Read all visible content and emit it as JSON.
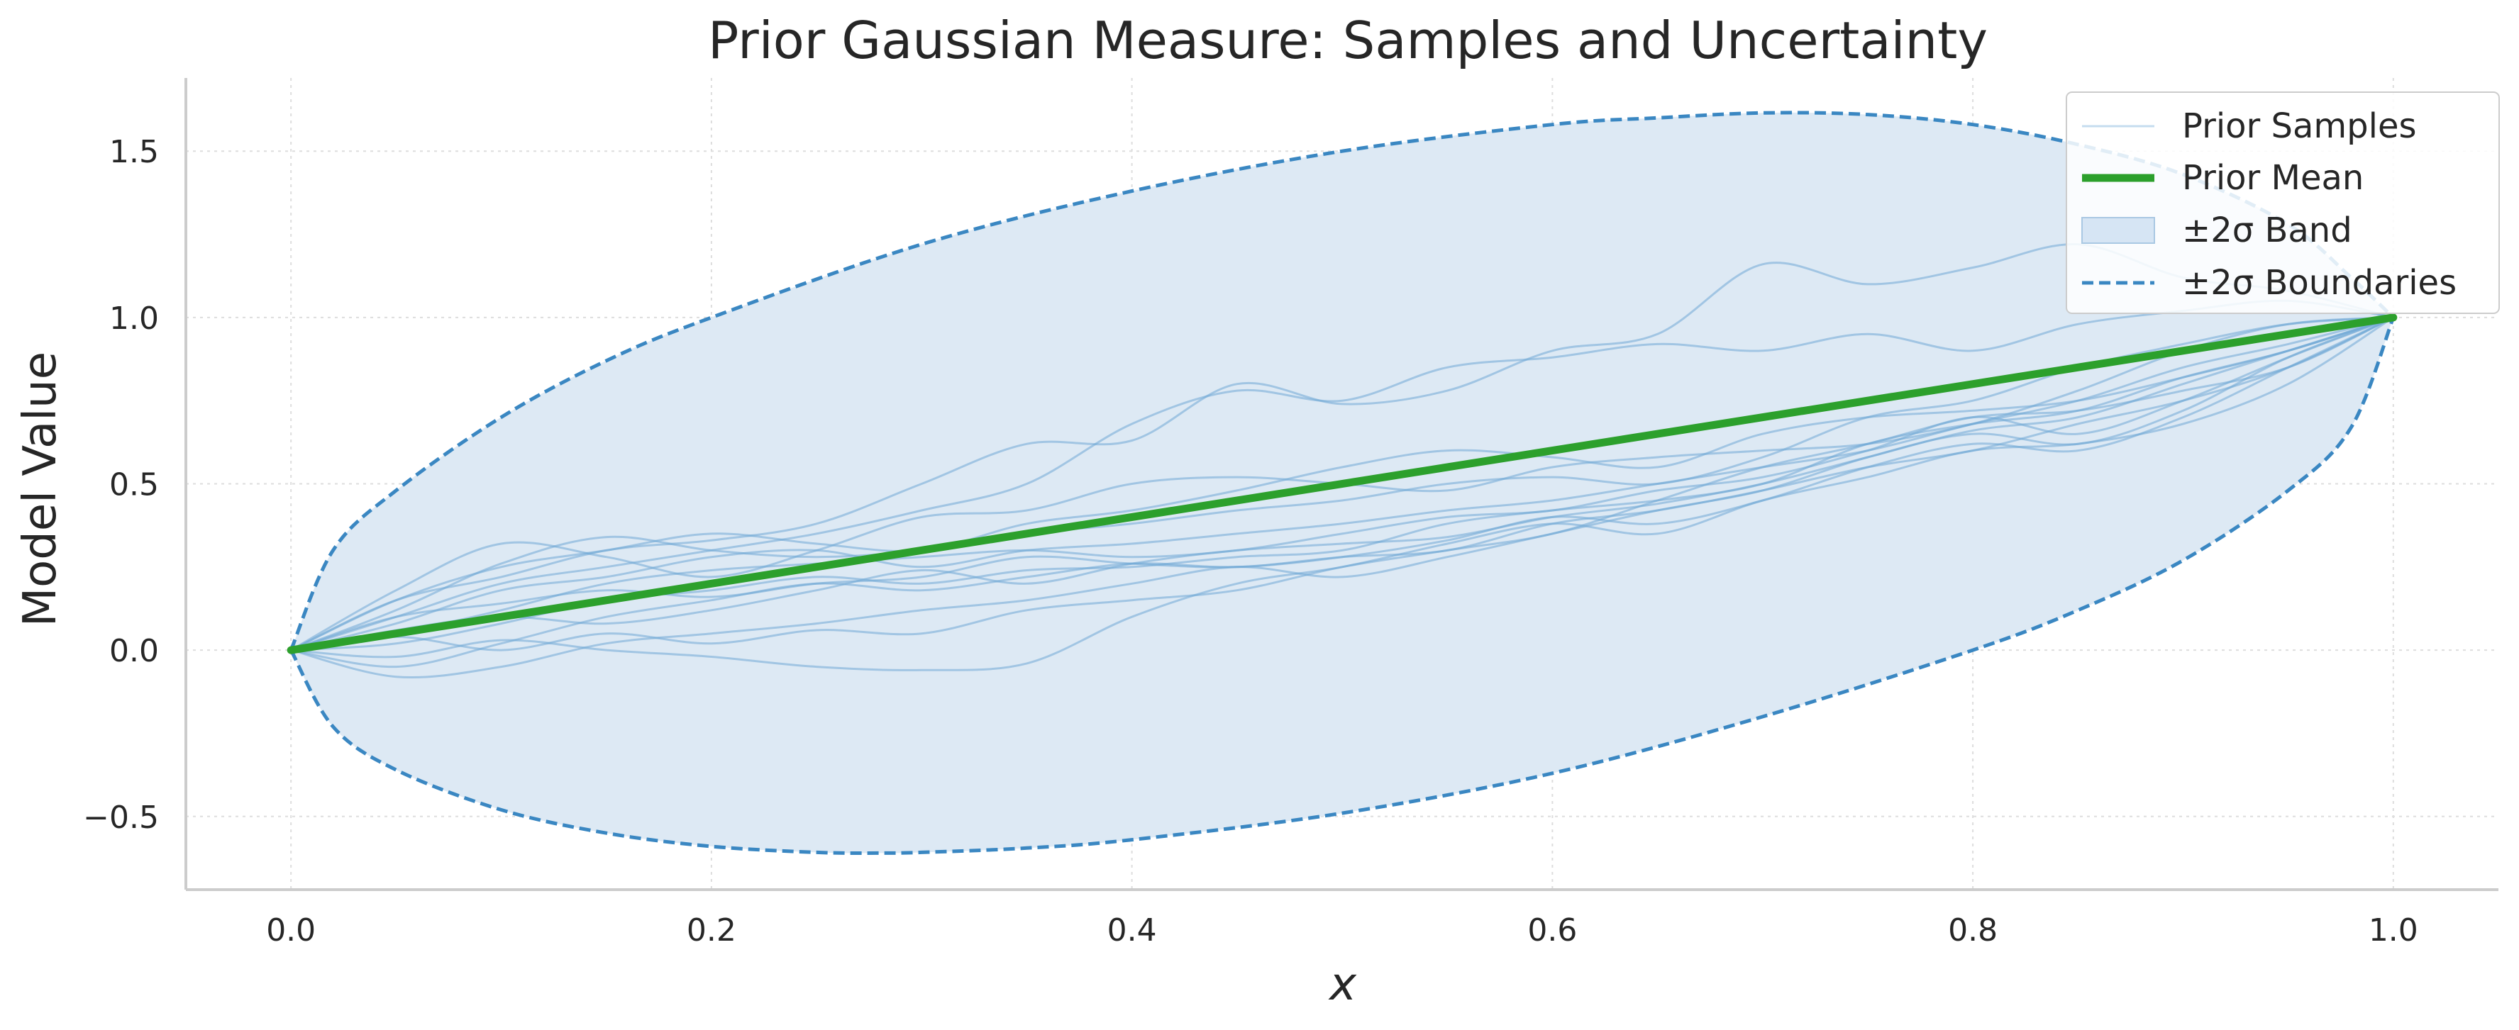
{
  "chart_data": {
    "type": "line",
    "title": "Prior Gaussian Measure: Samples and Uncertainty",
    "xlabel": "x",
    "ylabel": "Model Value",
    "xlim": [
      -0.05,
      1.05
    ],
    "ylim": [
      -0.72,
      1.72
    ],
    "x_ticks": [
      0.0,
      0.2,
      0.4,
      0.6,
      0.8,
      1.0
    ],
    "x_tick_labels": [
      "0.0",
      "0.2",
      "0.4",
      "0.6",
      "0.8",
      "1.0"
    ],
    "y_ticks": [
      -0.5,
      0.0,
      0.5,
      1.0,
      1.5
    ],
    "y_tick_labels": [
      "−0.5",
      "0.0",
      "0.5",
      "1.0",
      "1.5"
    ],
    "grid": true,
    "legend_position": "top-right",
    "legend": [
      {
        "label": "Prior Samples",
        "style": "thin-line",
        "color": "#6fa8d6"
      },
      {
        "label": "Prior Mean",
        "style": "thick-line",
        "color": "#2ca02c"
      },
      {
        "label": "±2σ Band",
        "style": "patch",
        "color": "#c6dbef"
      },
      {
        "label": "±2σ Boundaries",
        "style": "dashed-line",
        "color": "#3a87c2"
      }
    ],
    "mean": {
      "x": [
        0.0,
        1.0
      ],
      "y": [
        0.0,
        1.0
      ]
    },
    "upper_bound": {
      "x": [
        0.0,
        0.02,
        0.05,
        0.1,
        0.15,
        0.2,
        0.3,
        0.4,
        0.5,
        0.6,
        0.65,
        0.7,
        0.75,
        0.8,
        0.85,
        0.9,
        0.95,
        0.98,
        1.0
      ],
      "y": [
        0.0,
        0.3,
        0.48,
        0.7,
        0.87,
        1.0,
        1.22,
        1.38,
        1.5,
        1.58,
        1.6,
        1.615,
        1.61,
        1.58,
        1.52,
        1.43,
        1.28,
        1.12,
        1.0
      ]
    },
    "lower_bound": {
      "x": [
        0.0,
        0.02,
        0.05,
        0.1,
        0.15,
        0.2,
        0.25,
        0.28,
        0.3,
        0.35,
        0.4,
        0.5,
        0.6,
        0.7,
        0.8,
        0.85,
        0.9,
        0.95,
        0.98,
        1.0
      ],
      "y": [
        0.0,
        -0.23,
        -0.36,
        -0.48,
        -0.55,
        -0.59,
        -0.608,
        -0.61,
        -0.608,
        -0.595,
        -0.57,
        -0.49,
        -0.37,
        -0.2,
        0.0,
        0.12,
        0.27,
        0.48,
        0.67,
        1.0
      ]
    },
    "samples": [
      {
        "x": [
          0,
          0.05,
          0.1,
          0.15,
          0.2,
          0.25,
          0.3,
          0.35,
          0.4,
          0.45,
          0.5,
          0.55,
          0.6,
          0.65,
          0.7,
          0.75,
          0.8,
          0.85,
          0.9,
          0.95,
          1.0
        ],
        "y": [
          0,
          0.15,
          0.22,
          0.3,
          0.33,
          0.38,
          0.5,
          0.62,
          0.63,
          0.8,
          0.74,
          0.78,
          0.9,
          0.95,
          1.16,
          1.1,
          1.15,
          1.22,
          1.12,
          1.08,
          1.0
        ]
      },
      {
        "x": [
          0,
          0.05,
          0.1,
          0.15,
          0.2,
          0.25,
          0.3,
          0.35,
          0.4,
          0.45,
          0.5,
          0.55,
          0.6,
          0.65,
          0.7,
          0.75,
          0.8,
          0.85,
          0.9,
          0.95,
          1.0
        ],
        "y": [
          0,
          0.1,
          0.2,
          0.25,
          0.3,
          0.35,
          0.42,
          0.5,
          0.68,
          0.78,
          0.75,
          0.85,
          0.88,
          0.92,
          0.9,
          0.95,
          0.9,
          0.98,
          1.02,
          1.05,
          1.0
        ]
      },
      {
        "x": [
          0,
          0.05,
          0.1,
          0.15,
          0.2,
          0.25,
          0.3,
          0.35,
          0.4,
          0.45,
          0.5,
          0.55,
          0.6,
          0.65,
          0.7,
          0.75,
          0.8,
          0.85,
          0.9,
          0.95,
          1.0
        ],
        "y": [
          0,
          0.18,
          0.32,
          0.28,
          0.22,
          0.3,
          0.4,
          0.42,
          0.5,
          0.52,
          0.5,
          0.48,
          0.55,
          0.58,
          0.6,
          0.62,
          0.68,
          0.78,
          0.9,
          0.98,
          1.0
        ]
      },
      {
        "x": [
          0,
          0.05,
          0.1,
          0.15,
          0.2,
          0.25,
          0.3,
          0.35,
          0.4,
          0.45,
          0.5,
          0.55,
          0.6,
          0.65,
          0.7,
          0.75,
          0.8,
          0.85,
          0.9,
          0.95,
          1.0
        ],
        "y": [
          0,
          0.12,
          0.26,
          0.34,
          0.3,
          0.28,
          0.3,
          0.35,
          0.38,
          0.42,
          0.45,
          0.5,
          0.52,
          0.5,
          0.58,
          0.7,
          0.75,
          0.85,
          0.92,
          0.98,
          1.0
        ]
      },
      {
        "x": [
          0,
          0.05,
          0.1,
          0.15,
          0.2,
          0.25,
          0.3,
          0.35,
          0.4,
          0.45,
          0.5,
          0.55,
          0.6,
          0.65,
          0.7,
          0.75,
          0.8,
          0.85,
          0.9,
          0.95,
          1.0
        ],
        "y": [
          0,
          0.08,
          0.18,
          0.22,
          0.28,
          0.3,
          0.25,
          0.3,
          0.32,
          0.35,
          0.38,
          0.42,
          0.45,
          0.5,
          0.55,
          0.6,
          0.68,
          0.75,
          0.85,
          0.92,
          1.0
        ]
      },
      {
        "x": [
          0,
          0.05,
          0.1,
          0.15,
          0.2,
          0.25,
          0.3,
          0.35,
          0.4,
          0.45,
          0.5,
          0.55,
          0.6,
          0.65,
          0.7,
          0.75,
          0.8,
          0.85,
          0.9,
          0.95,
          1.0
        ],
        "y": [
          0,
          0.05,
          0.12,
          0.2,
          0.24,
          0.26,
          0.28,
          0.3,
          0.28,
          0.3,
          0.35,
          0.4,
          0.42,
          0.48,
          0.52,
          0.6,
          0.7,
          0.65,
          0.75,
          0.88,
          1.0
        ]
      },
      {
        "x": [
          0,
          0.05,
          0.1,
          0.15,
          0.2,
          0.25,
          0.3,
          0.35,
          0.4,
          0.45,
          0.5,
          0.55,
          0.6,
          0.65,
          0.7,
          0.75,
          0.8,
          0.85,
          0.9,
          0.95,
          1.0
        ],
        "y": [
          0,
          0.02,
          0.08,
          0.15,
          0.18,
          0.22,
          0.2,
          0.24,
          0.25,
          0.28,
          0.3,
          0.38,
          0.42,
          0.45,
          0.5,
          0.62,
          0.68,
          0.72,
          0.82,
          0.9,
          1.0
        ]
      },
      {
        "x": [
          0,
          0.05,
          0.1,
          0.15,
          0.2,
          0.25,
          0.3,
          0.35,
          0.4,
          0.45,
          0.5,
          0.55,
          0.6,
          0.65,
          0.7,
          0.75,
          0.8,
          0.85,
          0.9,
          0.95,
          1.0
        ],
        "y": [
          0,
          -0.05,
          0.02,
          0.1,
          0.15,
          0.2,
          0.18,
          0.22,
          0.26,
          0.25,
          0.28,
          0.33,
          0.4,
          0.38,
          0.45,
          0.55,
          0.62,
          0.6,
          0.7,
          0.85,
          1.0
        ]
      },
      {
        "x": [
          0,
          0.05,
          0.1,
          0.15,
          0.2,
          0.25,
          0.3,
          0.35,
          0.4,
          0.45,
          0.5,
          0.55,
          0.6,
          0.65,
          0.7,
          0.75,
          0.8,
          0.85,
          0.9,
          0.95,
          1.0
        ],
        "y": [
          0,
          -0.08,
          -0.05,
          0.02,
          0.05,
          0.08,
          0.12,
          0.15,
          0.2,
          0.25,
          0.22,
          0.28,
          0.35,
          0.42,
          0.48,
          0.58,
          0.65,
          0.62,
          0.72,
          0.88,
          1.0
        ]
      },
      {
        "x": [
          0,
          0.05,
          0.1,
          0.15,
          0.2,
          0.25,
          0.3,
          0.35,
          0.4,
          0.45,
          0.5,
          0.55,
          0.6,
          0.65,
          0.7,
          0.75,
          0.8,
          0.85,
          0.9,
          0.95,
          1.0
        ],
        "y": [
          0,
          -0.02,
          0.03,
          0.0,
          -0.02,
          -0.05,
          -0.06,
          -0.04,
          0.1,
          0.2,
          0.25,
          0.32,
          0.38,
          0.35,
          0.45,
          0.52,
          0.6,
          0.62,
          0.68,
          0.8,
          1.0
        ]
      },
      {
        "x": [
          0,
          0.05,
          0.1,
          0.15,
          0.2,
          0.25,
          0.3,
          0.35,
          0.4,
          0.45,
          0.5,
          0.55,
          0.6,
          0.65,
          0.7,
          0.75,
          0.8,
          0.85,
          0.9,
          0.95,
          1.0
        ],
        "y": [
          0,
          0.04,
          0.0,
          0.05,
          0.02,
          0.06,
          0.05,
          0.12,
          0.15,
          0.18,
          0.25,
          0.3,
          0.35,
          0.45,
          0.55,
          0.62,
          0.7,
          0.72,
          0.78,
          0.85,
          1.0
        ]
      },
      {
        "x": [
          0,
          0.05,
          0.1,
          0.15,
          0.2,
          0.25,
          0.3,
          0.35,
          0.4,
          0.45,
          0.5,
          0.55,
          0.6,
          0.65,
          0.7,
          0.75,
          0.8,
          0.85,
          0.9,
          0.95,
          1.0
        ],
        "y": [
          0,
          0.1,
          0.14,
          0.18,
          0.16,
          0.2,
          0.22,
          0.28,
          0.26,
          0.25,
          0.28,
          0.3,
          0.38,
          0.42,
          0.48,
          0.55,
          0.6,
          0.68,
          0.75,
          0.85,
          1.0
        ]
      },
      {
        "x": [
          0,
          0.05,
          0.1,
          0.15,
          0.2,
          0.25,
          0.3,
          0.35,
          0.4,
          0.45,
          0.5,
          0.55,
          0.6,
          0.65,
          0.7,
          0.75,
          0.8,
          0.85,
          0.9,
          0.95,
          1.0
        ],
        "y": [
          0,
          0.15,
          0.25,
          0.3,
          0.35,
          0.32,
          0.3,
          0.38,
          0.42,
          0.48,
          0.55,
          0.6,
          0.58,
          0.55,
          0.65,
          0.7,
          0.72,
          0.75,
          0.82,
          0.9,
          1.0
        ]
      },
      {
        "x": [
          0,
          0.05,
          0.1,
          0.15,
          0.2,
          0.25,
          0.3,
          0.35,
          0.4,
          0.45,
          0.5,
          0.55,
          0.6,
          0.65,
          0.7,
          0.75,
          0.8,
          0.85,
          0.9,
          0.95,
          1.0
        ],
        "y": [
          0,
          0.06,
          0.1,
          0.08,
          0.12,
          0.18,
          0.24,
          0.2,
          0.26,
          0.3,
          0.32,
          0.34,
          0.4,
          0.44,
          0.5,
          0.58,
          0.66,
          0.7,
          0.8,
          0.9,
          1.0
        ]
      }
    ],
    "colors": {
      "sample": "#6fa8d6",
      "mean": "#2ca02c",
      "band": "#dde9f4",
      "boundary": "#3a87c2",
      "grid": "#dddddd",
      "spine": "#cccccc",
      "text": "#262626"
    }
  }
}
